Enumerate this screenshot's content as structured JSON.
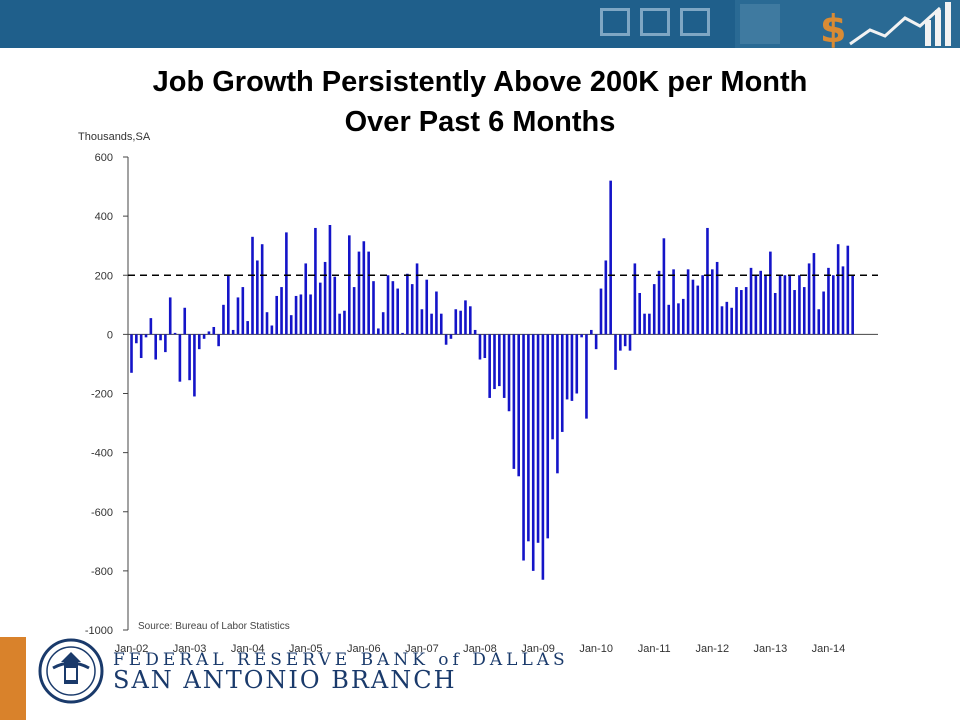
{
  "header": {
    "title_line1": "Job Growth Persistently Above 200K per Month",
    "title_line2": "Over Past 6 Months"
  },
  "footer": {
    "line1": "FEDERAL RESERVE BANK of DALLAS",
    "line2": "SAN ANTONIO BRANCH"
  },
  "colors": {
    "bar": "#1414c8",
    "band": "#1f5f8b",
    "accent": "#d9822b"
  },
  "chart_data": {
    "type": "bar",
    "unit_label": "Thousands,SA",
    "source": "Source: Bureau of Labor Statistics",
    "ylim": [
      -1000,
      600
    ],
    "yticks": [
      600,
      400,
      200,
      0,
      -200,
      -400,
      -600,
      -800,
      -1000
    ],
    "reference_line": 200,
    "start": "Jan-02",
    "x_tick_labels": [
      "Jan-02",
      "Jan-03",
      "Jan-04",
      "Jan-05",
      "Jan-06",
      "Jan-07",
      "Jan-08",
      "Jan-09",
      "Jan-10",
      "Jan-11",
      "Jan-12",
      "Jan-13",
      "Jan-14"
    ],
    "values": [
      -130,
      -30,
      -80,
      -10,
      55,
      -85,
      -20,
      -60,
      125,
      5,
      -160,
      90,
      -155,
      -210,
      -50,
      -15,
      10,
      25,
      -40,
      100,
      200,
      15,
      125,
      160,
      45,
      330,
      250,
      305,
      75,
      30,
      130,
      160,
      345,
      65,
      130,
      135,
      240,
      135,
      360,
      175,
      245,
      370,
      195,
      70,
      80,
      335,
      160,
      280,
      315,
      280,
      180,
      20,
      75,
      200,
      180,
      155,
      5,
      205,
      170,
      240,
      85,
      185,
      70,
      145,
      70,
      -35,
      -15,
      85,
      80,
      115,
      95,
      15,
      -85,
      -80,
      -215,
      -185,
      -175,
      -215,
      -260,
      -455,
      -480,
      -765,
      -700,
      -800,
      -705,
      -830,
      -690,
      -355,
      -470,
      -330,
      -220,
      -225,
      -200,
      -10,
      -285,
      15,
      -50,
      155,
      250,
      520,
      -120,
      -55,
      -40,
      -55,
      240,
      140,
      70,
      70,
      170,
      215,
      325,
      100,
      220,
      105,
      120,
      220,
      185,
      165,
      200,
      360,
      220,
      245,
      95,
      110,
      90,
      160,
      150,
      160,
      225,
      200,
      215,
      200,
      280,
      140,
      200,
      200,
      200,
      150,
      200,
      160,
      240,
      275,
      85,
      145,
      225,
      200,
      305,
      230,
      300,
      200
    ]
  }
}
